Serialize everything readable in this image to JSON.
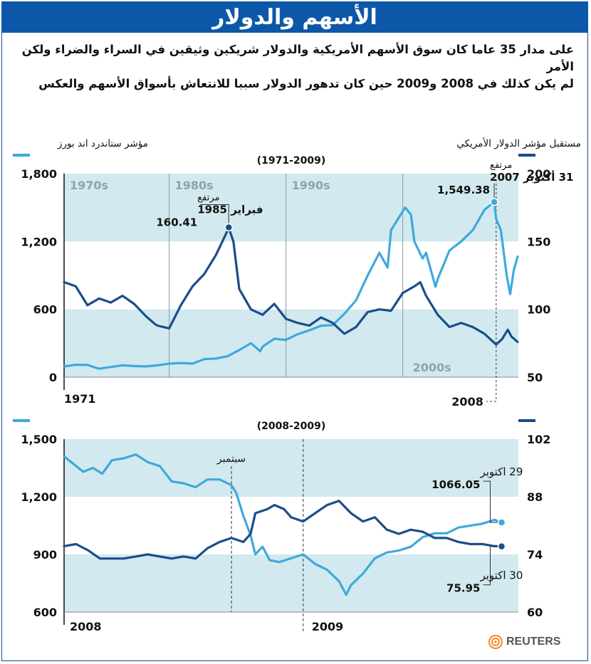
{
  "header": {
    "title": "الأسهم والدولار",
    "subtitle_line1": "على مدار 35 عاما كان سوق الأسهم الأمريكية والدولار شريكين وثيقين في السراء والضراء ولكن الأمر",
    "subtitle_line2": "لم يكن كذلك في 2008 و2009 حين كان تدهور الدولار سببا للانتعاش بأسواق الأسهم والعكس"
  },
  "legend": {
    "sp_label": "مؤشر ستاندرد اند بورز",
    "dollar_label": "مستقبل مؤشر الدولار الأمريكي",
    "sp_color": "#3fa9dc",
    "dollar_color": "#1a4d8c"
  },
  "colors": {
    "band": "#d2e9ef",
    "accent": "#0d57a8",
    "reuters_orange": "#f08a24"
  },
  "source": {
    "logo_text": "REUTERS"
  },
  "chart_data": [
    {
      "type": "line",
      "period_label": "(1971-2009)",
      "x_start_label": "1971",
      "x_end_label": "2008",
      "decade_labels": [
        "1970s",
        "1980s",
        "1990s",
        "2000s"
      ],
      "x_range": [
        1971,
        2009.9
      ],
      "y_left_range": [
        0,
        1800
      ],
      "y_left_ticks": [
        "0",
        "600",
        "1,200",
        "1,800"
      ],
      "y_right_range": [
        50,
        200
      ],
      "y_right_ticks": [
        "50",
        "100",
        "150",
        "200"
      ],
      "annotations": [
        {
          "lines": [
            "مرتفع",
            "فبراير 1985",
            "160.41"
          ],
          "x": 1985.1,
          "y": 160.41,
          "axis": "right"
        },
        {
          "lines": [
            "مرتفع",
            "31 أكتوبر 2007",
            "1,549.38"
          ],
          "x": 2007.83,
          "y": 1549.38,
          "axis": "left"
        }
      ],
      "series": [
        {
          "name": "مؤشر ستاندرد اند بورز",
          "axis": "left",
          "x": [
            1971,
            1972,
            1973,
            1974,
            1975,
            1976,
            1977,
            1978,
            1979,
            1980,
            1981,
            1982,
            1983,
            1984,
            1985,
            1986,
            1987,
            1987.8,
            1988,
            1989,
            1990,
            1991,
            1992,
            1993,
            1994,
            1995,
            1996,
            1997,
            1998,
            1998.7,
            1999,
            2000.2,
            2000.7,
            2001,
            2001.7,
            2002,
            2002.8,
            2003,
            2004,
            2005,
            2006,
            2007,
            2007.83,
            2008,
            2008.4,
            2008.9,
            2009.2,
            2009.5,
            2009.83
          ],
          "y": [
            95,
            110,
            108,
            75,
            90,
            105,
            98,
            95,
            105,
            120,
            125,
            120,
            160,
            165,
            185,
            240,
            300,
            230,
            270,
            340,
            330,
            380,
            415,
            455,
            460,
            560,
            680,
            900,
            1100,
            970,
            1300,
            1500,
            1440,
            1200,
            1050,
            1100,
            800,
            870,
            1120,
            1200,
            1300,
            1480,
            1549,
            1400,
            1300,
            900,
            735,
            940,
            1066
          ]
        },
        {
          "name": "مستقبل مؤشر الدولار الأمريكي",
          "axis": "right",
          "x": [
            1971,
            1972,
            1973,
            1974,
            1975,
            1976,
            1977,
            1978,
            1978.8,
            1979,
            1980,
            1981,
            1982,
            1983,
            1984,
            1985.1,
            1985.5,
            1986,
            1987,
            1988,
            1989,
            1990,
            1991,
            1992,
            1993,
            1994,
            1995,
            1996,
            1997,
            1998,
            1999,
            2000,
            2001,
            2001.5,
            2002,
            2003,
            2004,
            2005,
            2006,
            2007,
            2008,
            2008.5,
            2009,
            2009.3,
            2009.83
          ],
          "y": [
            120,
            117,
            103,
            108,
            105,
            110,
            104,
            95,
            89,
            88,
            86,
            103,
            117,
            126,
            140,
            160,
            150,
            115,
            100,
            96,
            104,
            93,
            90,
            88,
            94,
            90,
            82,
            87,
            98,
            100,
            99,
            112,
            117,
            120,
            110,
            96,
            87,
            90,
            87,
            82,
            74,
            78,
            85,
            80,
            76
          ]
        }
      ]
    },
    {
      "type": "line",
      "period_label": "(2008-2009)",
      "x_start_label": "2008",
      "x_mid_label": "2009",
      "marker_label": "سبتمبر",
      "x_range": [
        2008.0,
        2009.9
      ],
      "x_marker": 2008.7,
      "x_year_line": 2009.0,
      "y_left_range": [
        600,
        1500
      ],
      "y_left_ticks": [
        "600",
        "900",
        "1,200",
        "1,500"
      ],
      "y_right_range": [
        60,
        102
      ],
      "y_right_ticks": [
        "60",
        "74",
        "88",
        "102"
      ],
      "annotations": [
        {
          "lines": [
            "29 اكتوبر",
            "1066.05"
          ],
          "x": 2009.83,
          "y": 1066.05,
          "axis": "left"
        },
        {
          "lines": [
            "30 اكتوبر",
            "75.95"
          ],
          "x": 2009.83,
          "y": 75.95,
          "axis": "right"
        }
      ],
      "series": [
        {
          "name": "مؤشر ستاندرد اند بورز",
          "axis": "left",
          "x": [
            2008.0,
            2008.04,
            2008.08,
            2008.12,
            2008.16,
            2008.2,
            2008.25,
            2008.3,
            2008.35,
            2008.4,
            2008.45,
            2008.5,
            2008.55,
            2008.6,
            2008.65,
            2008.7,
            2008.72,
            2008.75,
            2008.78,
            2008.8,
            2008.83,
            2008.86,
            2008.9,
            2008.95,
            2009.0,
            2009.05,
            2009.1,
            2009.15,
            2009.18,
            2009.2,
            2009.25,
            2009.3,
            2009.35,
            2009.4,
            2009.45,
            2009.5,
            2009.55,
            2009.6,
            2009.65,
            2009.7,
            2009.75,
            2009.8,
            2009.83
          ],
          "y": [
            1410,
            1370,
            1330,
            1350,
            1320,
            1390,
            1400,
            1420,
            1380,
            1360,
            1280,
            1270,
            1250,
            1290,
            1290,
            1260,
            1220,
            1100,
            1000,
            900,
            940,
            870,
            860,
            880,
            900,
            850,
            820,
            760,
            690,
            740,
            800,
            880,
            910,
            920,
            940,
            990,
            1010,
            1010,
            1040,
            1050,
            1060,
            1080,
            1066
          ]
        },
        {
          "name": "مستقبل مؤشر الدولار الأمريكي",
          "axis": "right",
          "x": [
            2008.0,
            2008.05,
            2008.1,
            2008.15,
            2008.2,
            2008.25,
            2008.3,
            2008.35,
            2008.4,
            2008.45,
            2008.5,
            2008.55,
            2008.6,
            2008.65,
            2008.7,
            2008.75,
            2008.78,
            2008.8,
            2008.85,
            2008.88,
            2008.92,
            2008.95,
            2009.0,
            2009.05,
            2009.1,
            2009.15,
            2009.2,
            2009.25,
            2009.3,
            2009.35,
            2009.4,
            2009.45,
            2009.5,
            2009.55,
            2009.6,
            2009.65,
            2009.7,
            2009.75,
            2009.8,
            2009.83
          ],
          "y": [
            76,
            76.5,
            75,
            73,
            73,
            73,
            73.5,
            74,
            73.5,
            73,
            73.5,
            73,
            75.5,
            77,
            78,
            77,
            79,
            84,
            85,
            86,
            85,
            83,
            82,
            84,
            86,
            87,
            84,
            82,
            83,
            80,
            79,
            80,
            79.5,
            78,
            78,
            77,
            76.5,
            76.5,
            76,
            75.95
          ]
        }
      ]
    }
  ]
}
